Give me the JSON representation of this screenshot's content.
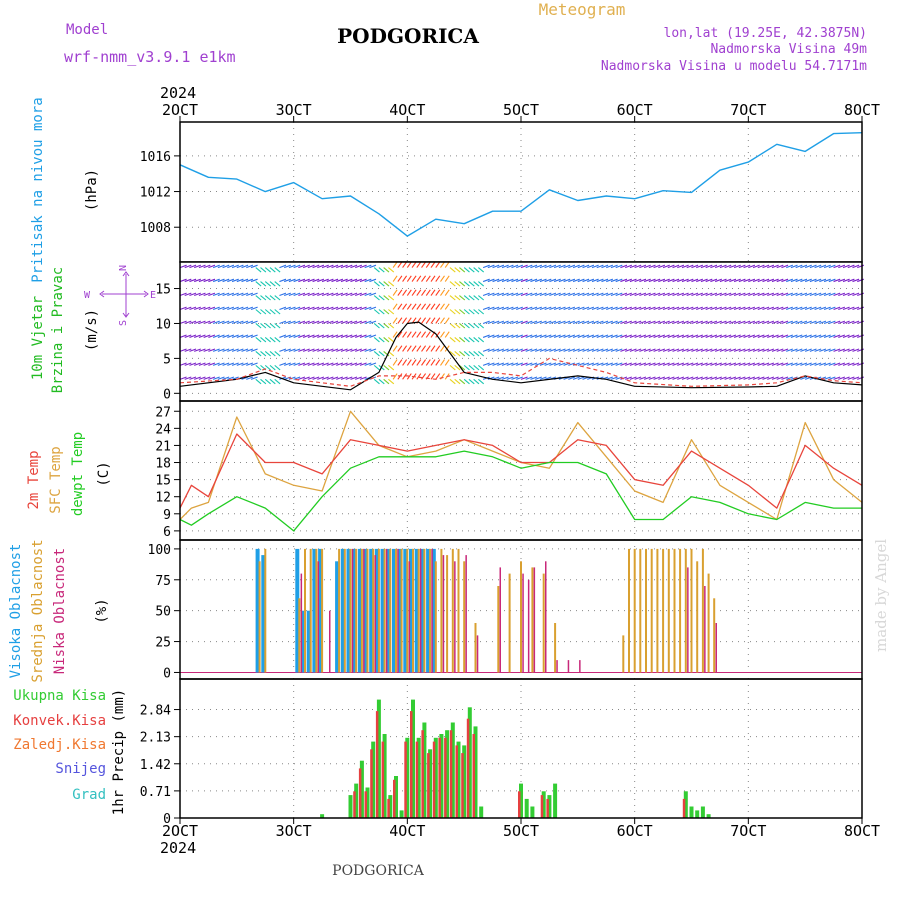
{
  "header": {
    "model_label": "Model",
    "model_name": "wrf-nmm_v3.9.1 e1km",
    "city": "PODGORICA",
    "kind": "Meteogram",
    "lonlat": "lon,lat (19.25E, 42.3875N)",
    "elevation": "Nadmorska Visina 49m",
    "model_elevation": "Nadmorska Visina u modelu 54.7171m",
    "year_top": "2024",
    "year_bottom": "2024",
    "footer_city": "PODGORICA",
    "credit": "made by Angel"
  },
  "colors": {
    "pressure": "#1f9fe6",
    "wind_label": "#22bb22",
    "temp2m": "#e8453c",
    "sfc": "#dda440",
    "dew": "#22cc22",
    "cloud_high": "#1f9fe6",
    "cloud_mid": "#d9a030",
    "cloud_low": "#c8287a",
    "rain_total": "#33cc33",
    "rain_conv": "#e64040",
    "rain_frz": "#f07830",
    "snow": "#5555dd",
    "hail": "#33c0c0",
    "header_purple": "#a040d0",
    "header_orange": "#e0b050"
  },
  "chart_data": [
    {
      "type": "line",
      "panel": "pressure",
      "ylabel_main": "Pritisak na nivou mora",
      "ylabel_unit": "(hPa)",
      "x_ticks": [
        "2OCT",
        "3OCT",
        "4OCT",
        "5OCT",
        "6OCT",
        "7OCT",
        "8OCT"
      ],
      "x_range_days": [
        2,
        8
      ],
      "y_ticks": [
        1008,
        1012,
        1016
      ],
      "ylim": [
        1004.1,
        1019.8
      ],
      "grid": true,
      "series": [
        {
          "x": [
            2,
            2.25,
            2.5,
            2.75,
            3,
            3.25,
            3.5,
            3.75,
            4,
            4.25,
            4.5,
            4.75,
            5,
            5.25,
            5.5,
            5.75,
            6,
            6.25,
            6.5,
            6.75,
            7,
            7.25,
            7.5,
            7.75,
            8
          ],
          "values": [
            1015,
            1013.6,
            1013.4,
            1012,
            1013,
            1011.2,
            1011.5,
            1009.5,
            1007,
            1008.9,
            1008.4,
            1009.8,
            1009.8,
            1012.2,
            1011,
            1011.5,
            1011.2,
            1012.1,
            1011.9,
            1014.4,
            1015.3,
            1017.3,
            1016.5,
            1018.5,
            1018.6
          ]
        }
      ]
    },
    {
      "type": "line",
      "panel": "wind",
      "ylabel_main": "10m Vjetar",
      "ylabel_sub": "Brzina i Pravac",
      "ylabel_unit": "(m/s)",
      "compass": {
        "n": "N",
        "w": "W",
        "e": "E",
        "s": "S"
      },
      "y_ticks": [
        0,
        5,
        10,
        15
      ],
      "ylim": [
        -1.1,
        18.8
      ],
      "series": [
        {
          "style": "solid",
          "x": [
            2,
            2.5,
            2.75,
            3,
            3.5,
            3.75,
            3.9,
            4,
            4.1,
            4.25,
            4.5,
            4.75,
            5,
            5.5,
            5.75,
            6,
            6.5,
            7,
            7.25,
            7.5,
            7.75,
            8
          ],
          "values": [
            1,
            2,
            3,
            1.5,
            0.5,
            3,
            8,
            10,
            10.2,
            8.5,
            3,
            2,
            1.5,
            2.5,
            2,
            1,
            0.8,
            0.9,
            1,
            2.5,
            1.5,
            1.2
          ]
        },
        {
          "style": "dashed",
          "x": [
            2,
            2.5,
            2.75,
            3,
            3.5,
            3.75,
            4,
            4.25,
            4.5,
            4.75,
            5,
            5.25,
            5.5,
            5.75,
            6,
            6.5,
            7,
            7.25,
            7.5,
            7.75,
            8
          ],
          "values": [
            1.5,
            2,
            3.5,
            2,
            1,
            2.5,
            2.5,
            2,
            3,
            3,
            2.5,
            5,
            4,
            3,
            1.5,
            1,
            1.2,
            1.5,
            2.5,
            1.8,
            1.5
          ]
        }
      ]
    },
    {
      "type": "line",
      "panel": "temperature",
      "labels": [
        "2m Temp",
        "SFC Temp",
        "dewpt Temp"
      ],
      "ylabel_unit": "(C)",
      "y_ticks": [
        6,
        9,
        12,
        15,
        18,
        21,
        24,
        27
      ],
      "ylim": [
        4.4,
        28.8
      ],
      "series": [
        {
          "name": "2m Temp",
          "x": [
            2,
            2.1,
            2.25,
            2.5,
            2.75,
            3,
            3.25,
            3.5,
            3.75,
            4,
            4.25,
            4.5,
            4.75,
            5,
            5.25,
            5.5,
            5.75,
            6,
            6.25,
            6.5,
            6.75,
            7,
            7.25,
            7.5,
            7.75,
            8
          ],
          "values": [
            10,
            14,
            12,
            23,
            18,
            18,
            16,
            22,
            21,
            20,
            21,
            22,
            21,
            18,
            18,
            22,
            21,
            15,
            14,
            20,
            17,
            14,
            10,
            21,
            17,
            14
          ]
        },
        {
          "name": "SFC Temp",
          "x": [
            2,
            2.1,
            2.25,
            2.5,
            2.75,
            3,
            3.25,
            3.5,
            3.75,
            4,
            4.25,
            4.5,
            4.75,
            5,
            5.25,
            5.5,
            5.75,
            6,
            6.25,
            6.5,
            6.75,
            7,
            7.25,
            7.5,
            7.75,
            8
          ],
          "values": [
            8,
            10,
            11,
            26,
            16,
            14,
            13,
            27,
            21,
            19,
            20,
            22,
            20,
            18,
            17,
            25,
            19,
            13,
            11,
            22,
            14,
            11,
            8,
            25,
            15,
            11
          ]
        },
        {
          "name": "dewpt Temp",
          "x": [
            2,
            2.1,
            2.25,
            2.5,
            2.75,
            3,
            3.25,
            3.5,
            3.75,
            4,
            4.25,
            4.5,
            4.75,
            5,
            5.25,
            5.5,
            5.75,
            6,
            6.25,
            6.5,
            6.75,
            7,
            7.25,
            7.5,
            7.75,
            8
          ],
          "values": [
            8,
            7,
            9,
            12,
            10,
            6,
            12,
            17,
            19,
            19,
            19,
            20,
            19,
            17,
            18,
            18,
            16,
            8,
            8,
            12,
            11,
            9,
            8,
            11,
            10,
            10
          ]
        }
      ]
    },
    {
      "type": "bar",
      "panel": "cloud",
      "labels": [
        "Visoka Oblacnost",
        "Srednja Oblacnost",
        "Niska Oblacnost"
      ],
      "ylabel_unit": "(%)",
      "y_ticks": [
        0,
        25,
        50,
        75,
        100
      ],
      "ylim": [
        -5.3,
        107.2
      ],
      "series": [
        {
          "name": "Visoka Oblacnost",
          "x": [
            2.7,
            2.75,
            3.05,
            3.1,
            3.15,
            3.2,
            3.25,
            3.4,
            3.45,
            3.5,
            3.55,
            3.6,
            3.65,
            3.7,
            3.75,
            3.8,
            3.85,
            3.9,
            3.95,
            4,
            4.05,
            4.1,
            4.15,
            4.2,
            4.25
          ],
          "values": [
            100,
            95,
            100,
            50,
            50,
            100,
            100,
            90,
            100,
            100,
            100,
            100,
            100,
            100,
            100,
            100,
            100,
            100,
            100,
            100,
            100,
            100,
            100,
            100,
            100
          ]
        },
        {
          "name": "Srednja Oblacnost",
          "x": [
            2.7,
            2.75,
            3.05,
            3.1,
            3.15,
            3.2,
            3.25,
            3.4,
            3.45,
            3.5,
            3.55,
            3.6,
            3.65,
            3.7,
            3.75,
            3.8,
            3.85,
            3.9,
            3.95,
            4,
            4.05,
            4.1,
            4.15,
            4.2,
            4.25,
            4.3,
            4.35,
            4.4,
            4.45,
            4.5,
            4.6,
            4.8,
            4.9,
            5.0,
            5.1,
            5.2,
            5.3,
            5.9,
            5.95,
            6,
            6.05,
            6.1,
            6.15,
            6.2,
            6.25,
            6.3,
            6.35,
            6.4,
            6.45,
            6.5,
            6.55,
            6.6,
            6.65,
            6.7
          ],
          "values": [
            90,
            100,
            60,
            100,
            100,
            100,
            100,
            100,
            100,
            100,
            100,
            100,
            100,
            100,
            100,
            100,
            100,
            100,
            100,
            100,
            100,
            100,
            100,
            100,
            90,
            100,
            95,
            100,
            100,
            90,
            40,
            70,
            80,
            90,
            85,
            80,
            40,
            30,
            100,
            100,
            100,
            100,
            100,
            100,
            100,
            100,
            100,
            100,
            100,
            100,
            90,
            100,
            80,
            60
          ]
        },
        {
          "name": "Niska Oblacnost",
          "x": [
            3.05,
            3.2,
            3.3,
            3.5,
            3.6,
            3.7,
            3.8,
            3.9,
            4.0,
            4.1,
            4.2,
            4.3,
            4.4,
            4.5,
            4.6,
            4.8,
            5.0,
            5.05,
            5.1,
            5.2,
            5.3,
            5.4,
            5.5,
            6.45,
            6.6,
            6.7
          ],
          "values": [
            80,
            90,
            50,
            100,
            100,
            95,
            100,
            100,
            90,
            100,
            100,
            95,
            90,
            95,
            30,
            85,
            80,
            75,
            85,
            90,
            10,
            10,
            10,
            85,
            70,
            40
          ]
        }
      ]
    },
    {
      "type": "bar",
      "panel": "precip",
      "labels": [
        "Ukupna Kisa",
        "Konvek.Kisa",
        "Zaledj.Kisa",
        "Snijeg",
        "Grad"
      ],
      "ylabel_unit": "1hr Precip (mm)",
      "y_ticks": [
        0,
        0.71,
        1.42,
        2.13,
        2.84
      ],
      "ylim": [
        0,
        3.64
      ],
      "series": [
        {
          "name": "Ukupna Kisa",
          "x": [
            3.25,
            3.5,
            3.55,
            3.6,
            3.65,
            3.7,
            3.75,
            3.8,
            3.85,
            3.9,
            3.95,
            4.0,
            4.05,
            4.1,
            4.15,
            4.2,
            4.25,
            4.3,
            4.35,
            4.4,
            4.45,
            4.5,
            4.55,
            4.6,
            4.65,
            5.0,
            5.05,
            5.1,
            5.2,
            5.25,
            5.3,
            6.45,
            6.5,
            6.55,
            6.6,
            6.65
          ],
          "values": [
            0.1,
            0.6,
            0.9,
            1.5,
            0.8,
            2.0,
            3.1,
            2.2,
            0.6,
            1.1,
            0.2,
            2.1,
            3.1,
            2.1,
            2.5,
            1.8,
            2.1,
            2.2,
            2.3,
            2.5,
            2.0,
            1.9,
            2.9,
            2.4,
            0.3,
            0.9,
            0.5,
            0.3,
            0.7,
            0.6,
            0.9,
            0.7,
            0.3,
            0.2,
            0.3,
            0.1
          ]
        },
        {
          "name": "Konvek.Kisa",
          "x": [
            3.55,
            3.6,
            3.65,
            3.7,
            3.75,
            3.8,
            3.85,
            3.9,
            4.0,
            4.05,
            4.1,
            4.15,
            4.2,
            4.25,
            4.3,
            4.35,
            4.4,
            4.45,
            4.5,
            4.55,
            4.6,
            5.0,
            5.2,
            5.25,
            6.45
          ],
          "values": [
            0.7,
            1.3,
            0.7,
            1.8,
            2.8,
            2.0,
            0.5,
            1.0,
            2.0,
            2.8,
            2.0,
            2.3,
            1.7,
            2.0,
            2.1,
            2.1,
            2.3,
            1.9,
            1.7,
            2.6,
            2.2,
            0.7,
            0.6,
            0.5,
            0.5
          ]
        }
      ]
    }
  ]
}
